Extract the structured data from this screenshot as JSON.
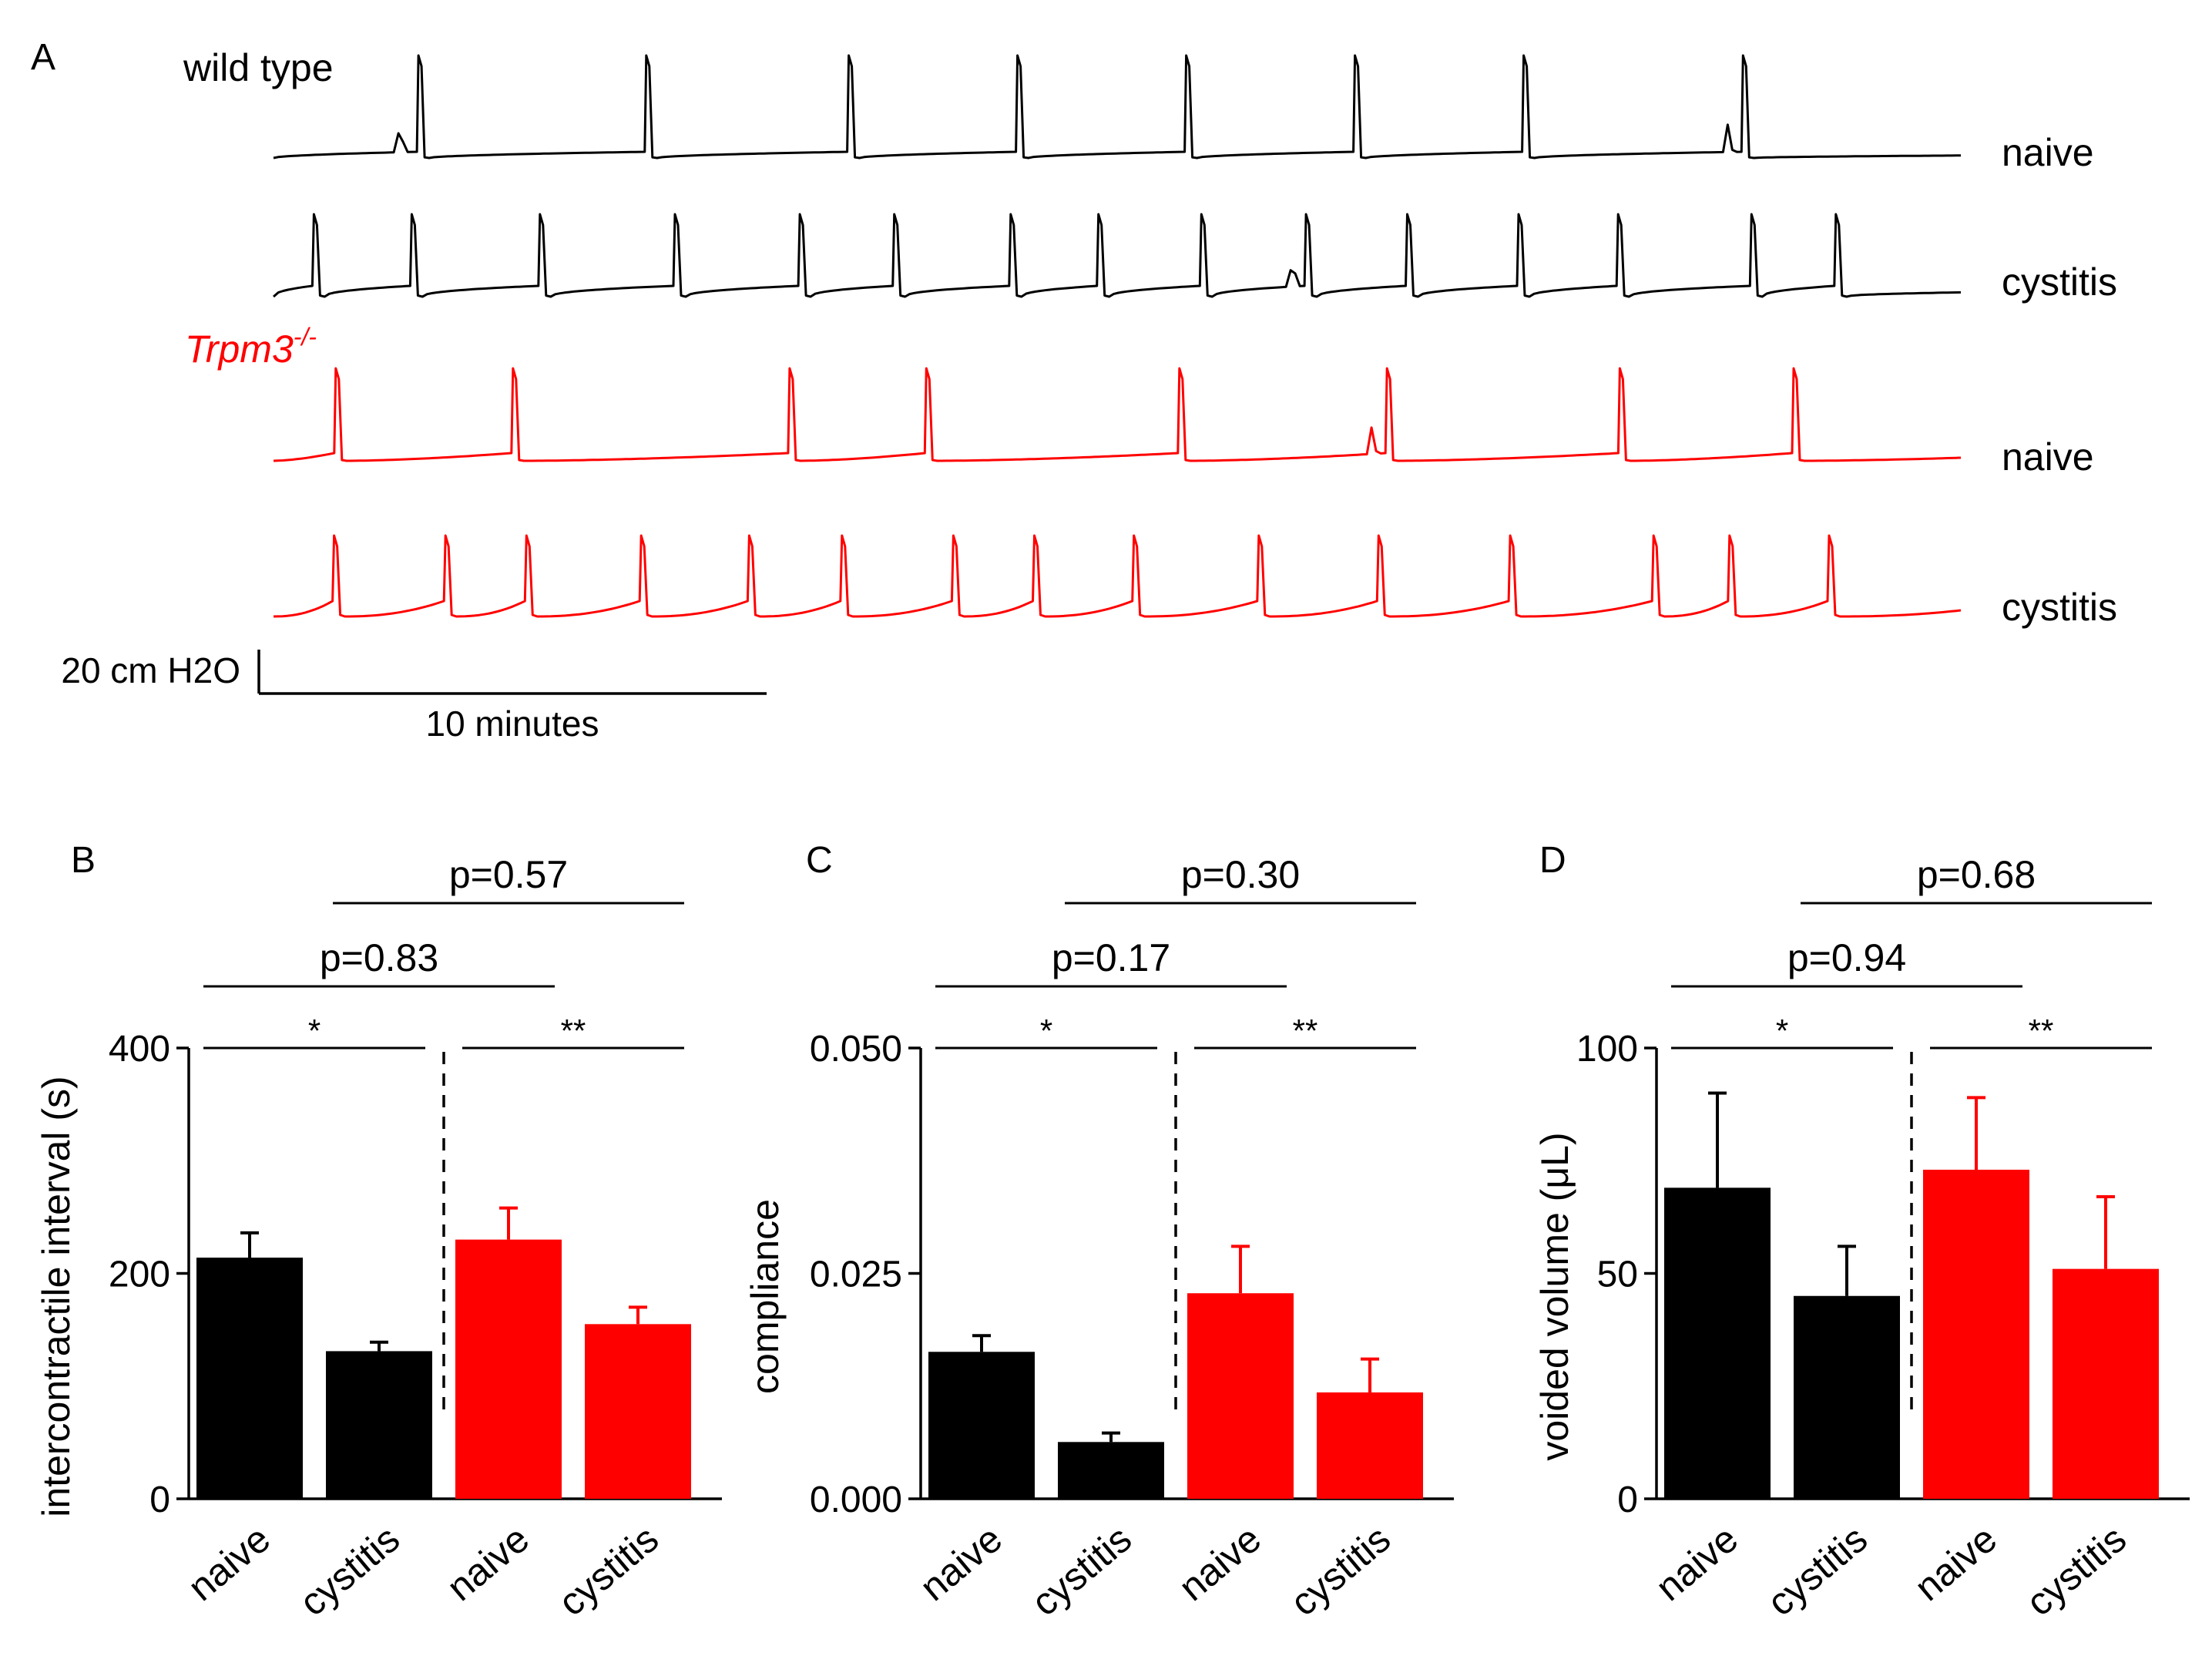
{
  "colors": {
    "wild_type": "#000000",
    "knockout": "#ff0000"
  },
  "panelA": {
    "label": "A",
    "wild_type_label": "wild type",
    "knockout_label_base": "Trpm3",
    "knockout_label_sup": "-/-",
    "traces": [
      {
        "genotype": "wild type",
        "condition_label": "naive"
      },
      {
        "genotype": "wild type",
        "condition_label": "cystitis"
      },
      {
        "genotype": "Trpm3-/-",
        "condition_label": "naive"
      },
      {
        "genotype": "Trpm3-/-",
        "condition_label": "cystitis"
      }
    ],
    "scale_bar": {
      "vertical_label": "20 cm H2O",
      "horizontal_label": "10 minutes"
    }
  },
  "chart_data": [
    {
      "panel": "B",
      "type": "bar",
      "ylabel": "intercontractile interval (s)",
      "ylim": [
        0,
        400
      ],
      "yticks": [
        "0",
        "200",
        "400"
      ],
      "categories": [
        "naive",
        "cystitis",
        "naive",
        "cystitis"
      ],
      "values": [
        214,
        131,
        230,
        155
      ],
      "errors": [
        22,
        8,
        28,
        15
      ],
      "bar_colors": [
        "#000000",
        "#000000",
        "#ff0000",
        "#ff0000"
      ],
      "comparisons": [
        {
          "from": 0,
          "to": 1,
          "label": "*"
        },
        {
          "from": 2,
          "to": 3,
          "label": "**"
        },
        {
          "from": 0,
          "to": 2,
          "label": "p=0.83"
        },
        {
          "from": 1,
          "to": 3,
          "label": "p=0.57"
        }
      ]
    },
    {
      "panel": "C",
      "type": "bar",
      "ylabel": "compliance",
      "ylim": [
        0,
        0.05
      ],
      "yticks": [
        "0.000",
        "0.025",
        "0.050"
      ],
      "categories": [
        "naive",
        "cystitis",
        "naive",
        "cystitis"
      ],
      "values": [
        0.0163,
        0.0063,
        0.0228,
        0.0118
      ],
      "errors": [
        0.0018,
        0.001,
        0.0052,
        0.0037
      ],
      "bar_colors": [
        "#000000",
        "#000000",
        "#ff0000",
        "#ff0000"
      ],
      "comparisons": [
        {
          "from": 0,
          "to": 1,
          "label": "*"
        },
        {
          "from": 2,
          "to": 3,
          "label": "**"
        },
        {
          "from": 0,
          "to": 2,
          "label": "p=0.17"
        },
        {
          "from": 1,
          "to": 3,
          "label": "p=0.30"
        }
      ]
    },
    {
      "panel": "D",
      "type": "bar",
      "ylabel": "voided volume (μL)",
      "ylim": [
        0,
        100
      ],
      "yticks": [
        "0",
        "50",
        "100"
      ],
      "categories": [
        "naive",
        "cystitis",
        "naive",
        "cystitis"
      ],
      "values": [
        69,
        45,
        73,
        51
      ],
      "errors": [
        21,
        11,
        16,
        16
      ],
      "bar_colors": [
        "#000000",
        "#000000",
        "#ff0000",
        "#ff0000"
      ],
      "comparisons": [
        {
          "from": 0,
          "to": 1,
          "label": "*"
        },
        {
          "from": 2,
          "to": 3,
          "label": "**"
        },
        {
          "from": 0,
          "to": 2,
          "label": "p=0.94"
        },
        {
          "from": 1,
          "to": 3,
          "label": "p=0.68"
        }
      ]
    }
  ]
}
